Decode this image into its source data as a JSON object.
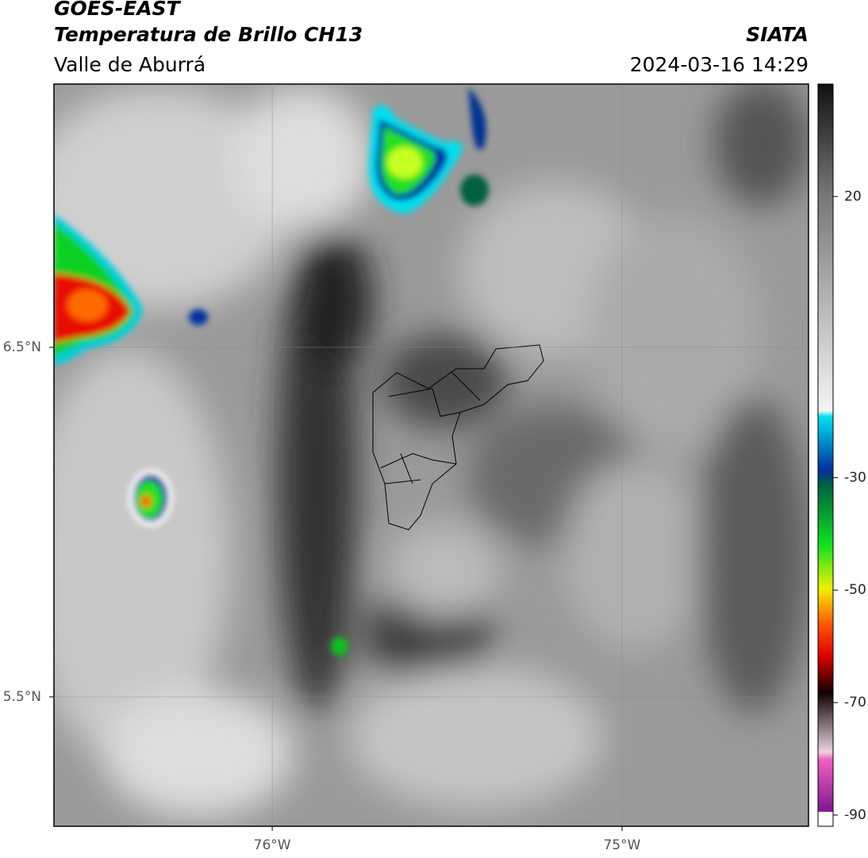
{
  "header": {
    "title": "GOES-EAST",
    "subtitle": "Temperatura de Brillo CH13",
    "region": "Valle de Aburrá",
    "source": "SIATA",
    "timestamp": "2024-03-16 14:29"
  },
  "map": {
    "xlim": [
      -76.624,
      -74.467
    ],
    "ylim": [
      5.13,
      7.253
    ],
    "xticks": [
      {
        "value": -76,
        "label": "76°W"
      },
      {
        "value": -75,
        "label": "75°W"
      }
    ],
    "yticks": [
      {
        "value": 6.5,
        "label": "6.5°N"
      },
      {
        "value": 5.5,
        "label": "5.5°N"
      }
    ]
  },
  "colorbar": {
    "lim": [
      -92,
      40
    ],
    "ticks": [
      20,
      -30,
      -50,
      -70,
      -90
    ]
  }
}
